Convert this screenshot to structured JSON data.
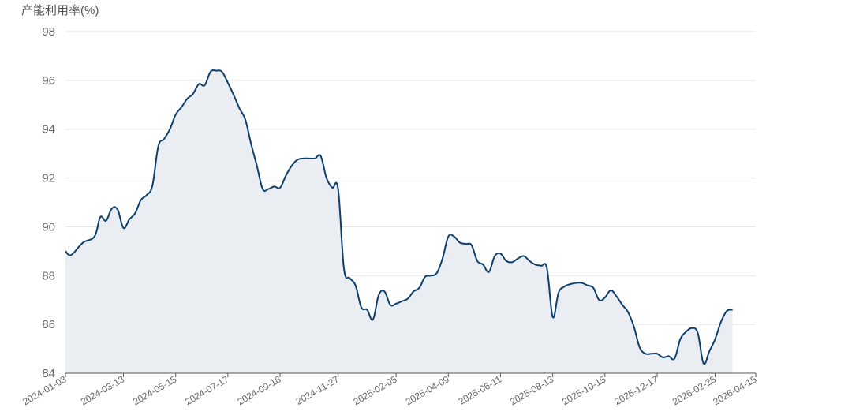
{
  "chart_data": {
    "type": "area",
    "ylabel": "产能利用率(%)",
    "ylim": [
      84,
      98
    ],
    "yticks": [
      84,
      86,
      88,
      90,
      92,
      94,
      96,
      98
    ],
    "xticks": [
      "2024-01-03",
      "2024-03-13",
      "2024-05-15",
      "2024-07-17",
      "2024-09-18",
      "2024-11-27",
      "2025-02-05",
      "2025-04-09",
      "2025-06-11",
      "2025-08-13",
      "2025-10-15",
      "2025-12-17",
      "2026-02-25",
      "2026-04-15"
    ],
    "grid": true,
    "line_color": "#0d3f6e",
    "fill_color": "#eaeef3",
    "series": [
      {
        "points": [
          [
            "2024-01-03",
            89.0
          ],
          [
            "2024-01-10",
            88.85
          ],
          [
            "2024-01-24",
            89.35
          ],
          [
            "2024-02-07",
            89.6
          ],
          [
            "2024-02-14",
            90.4
          ],
          [
            "2024-02-21",
            90.25
          ],
          [
            "2024-02-28",
            90.75
          ],
          [
            "2024-03-06",
            90.7
          ],
          [
            "2024-03-13",
            89.95
          ],
          [
            "2024-03-20",
            90.3
          ],
          [
            "2024-03-27",
            90.55
          ],
          [
            "2024-04-03",
            91.1
          ],
          [
            "2024-04-10",
            91.3
          ],
          [
            "2024-04-17",
            91.7
          ],
          [
            "2024-04-24",
            93.3
          ],
          [
            "2024-05-01",
            93.6
          ],
          [
            "2024-05-08",
            94.0
          ],
          [
            "2024-05-15",
            94.6
          ],
          [
            "2024-05-22",
            94.9
          ],
          [
            "2024-05-29",
            95.25
          ],
          [
            "2024-06-05",
            95.45
          ],
          [
            "2024-06-12",
            95.85
          ],
          [
            "2024-06-19",
            95.8
          ],
          [
            "2024-06-26",
            96.35
          ],
          [
            "2024-07-03",
            96.4
          ],
          [
            "2024-07-10",
            96.35
          ],
          [
            "2024-07-17",
            95.9
          ],
          [
            "2024-07-24",
            95.4
          ],
          [
            "2024-07-31",
            94.85
          ],
          [
            "2024-08-07",
            94.4
          ],
          [
            "2024-08-14",
            93.4
          ],
          [
            "2024-08-21",
            92.5
          ],
          [
            "2024-08-28",
            91.55
          ],
          [
            "2024-09-04",
            91.55
          ],
          [
            "2024-09-11",
            91.65
          ],
          [
            "2024-09-18",
            91.6
          ],
          [
            "2024-09-25",
            92.1
          ],
          [
            "2024-10-02",
            92.5
          ],
          [
            "2024-10-09",
            92.75
          ],
          [
            "2024-10-16",
            92.8
          ],
          [
            "2024-10-23",
            92.8
          ],
          [
            "2024-10-30",
            92.8
          ],
          [
            "2024-11-06",
            92.9
          ],
          [
            "2024-11-13",
            92.0
          ],
          [
            "2024-11-20",
            91.6
          ],
          [
            "2024-11-27",
            91.55
          ],
          [
            "2024-12-04",
            88.3
          ],
          [
            "2024-12-11",
            87.9
          ],
          [
            "2024-12-18",
            87.6
          ],
          [
            "2024-12-25",
            86.7
          ],
          [
            "2025-01-01",
            86.6
          ],
          [
            "2025-01-08",
            86.2
          ],
          [
            "2025-01-15",
            87.2
          ],
          [
            "2025-01-22",
            87.35
          ],
          [
            "2025-01-29",
            86.8
          ],
          [
            "2025-02-05",
            86.85
          ],
          [
            "2025-02-12",
            86.95
          ],
          [
            "2025-02-19",
            87.05
          ],
          [
            "2025-02-26",
            87.35
          ],
          [
            "2025-03-05",
            87.5
          ],
          [
            "2025-03-12",
            87.95
          ],
          [
            "2025-03-19",
            88.0
          ],
          [
            "2025-03-26",
            88.1
          ],
          [
            "2025-04-02",
            88.7
          ],
          [
            "2025-04-09",
            89.6
          ],
          [
            "2025-04-16",
            89.6
          ],
          [
            "2025-04-23",
            89.35
          ],
          [
            "2025-04-30",
            89.3
          ],
          [
            "2025-05-07",
            89.25
          ],
          [
            "2025-05-14",
            88.6
          ],
          [
            "2025-05-21",
            88.45
          ],
          [
            "2025-05-28",
            88.15
          ],
          [
            "2025-06-04",
            88.8
          ],
          [
            "2025-06-11",
            88.9
          ],
          [
            "2025-06-18",
            88.6
          ],
          [
            "2025-06-25",
            88.55
          ],
          [
            "2025-07-02",
            88.7
          ],
          [
            "2025-07-09",
            88.8
          ],
          [
            "2025-07-16",
            88.6
          ],
          [
            "2025-07-23",
            88.45
          ],
          [
            "2025-07-30",
            88.4
          ],
          [
            "2025-08-06",
            88.3
          ],
          [
            "2025-08-13",
            86.3
          ],
          [
            "2025-08-20",
            87.3
          ],
          [
            "2025-08-27",
            87.55
          ],
          [
            "2025-09-03",
            87.65
          ],
          [
            "2025-09-10",
            87.7
          ],
          [
            "2025-09-17",
            87.7
          ],
          [
            "2025-09-24",
            87.6
          ],
          [
            "2025-10-01",
            87.5
          ],
          [
            "2025-10-08",
            87.0
          ],
          [
            "2025-10-15",
            87.1
          ],
          [
            "2025-10-22",
            87.4
          ],
          [
            "2025-10-29",
            87.15
          ],
          [
            "2025-11-05",
            86.8
          ],
          [
            "2025-11-12",
            86.5
          ],
          [
            "2025-11-19",
            85.9
          ],
          [
            "2025-11-26",
            85.05
          ],
          [
            "2025-12-03",
            84.8
          ],
          [
            "2025-12-10",
            84.8
          ],
          [
            "2025-12-17",
            84.8
          ],
          [
            "2025-12-24",
            84.65
          ],
          [
            "2025-12-31",
            84.7
          ],
          [
            "2026-01-07",
            84.6
          ],
          [
            "2026-01-14",
            85.4
          ],
          [
            "2026-01-21",
            85.7
          ],
          [
            "2026-01-28",
            85.85
          ],
          [
            "2026-02-04",
            85.65
          ],
          [
            "2026-02-11",
            84.4
          ],
          [
            "2026-02-18",
            84.9
          ],
          [
            "2026-02-25",
            85.4
          ],
          [
            "2026-03-04",
            86.1
          ],
          [
            "2026-03-11",
            86.55
          ],
          [
            "2026-03-18",
            86.6
          ]
        ]
      }
    ]
  }
}
